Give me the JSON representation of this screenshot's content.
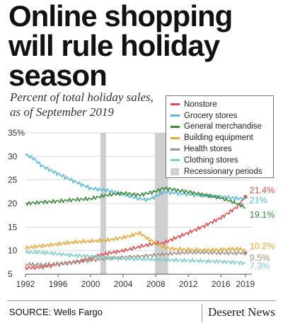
{
  "header": {
    "title": "Online shopping will rule holiday season",
    "subtitle": "Percent of total holiday sales, as of September 2019"
  },
  "footer": {
    "source": "SOURCE: Wells Fargo",
    "brand": "Deseret News"
  },
  "colors": {
    "nonstore": "#d8504f",
    "grocery": "#5bb8d8",
    "general": "#3e8a3e",
    "building": "#e3a93a",
    "health": "#a39384",
    "clothing": "#7fcdc6",
    "recession": "#cfcfcf"
  },
  "chart_data": {
    "type": "line",
    "title": "Online shopping will rule holiday season",
    "subtitle": "Percent of total holiday sales, as of September 2019",
    "xlabel": "",
    "ylabel": "",
    "xlim": [
      1992,
      2019.8
    ],
    "ylim": [
      5,
      35
    ],
    "x_ticks": [
      1992,
      1996,
      2000,
      2004,
      2008,
      2012,
      2016,
      2019
    ],
    "x_tick_labels": [
      "1992",
      "1996",
      "2000",
      "2004",
      "2008",
      "2012",
      "2016",
      "2019"
    ],
    "y_ticks": [
      5,
      10,
      15,
      20,
      25,
      30,
      35
    ],
    "y_tick_labels": [
      "5",
      "10",
      "15",
      "20",
      "25",
      "30",
      "35%"
    ],
    "grid": "horizontal",
    "legend_position": "top-right",
    "recession_label": "Recessionary periods",
    "recessions": [
      [
        2001.2,
        2001.9
      ],
      [
        2007.9,
        2009.5
      ]
    ],
    "series": [
      {
        "name": "Nonstore",
        "color": "#d8504f",
        "end_label": "21.4%",
        "x": [
          1992,
          1994,
          1996,
          1998,
          2000,
          2001,
          2002,
          2004,
          2006,
          2008,
          2009,
          2010,
          2012,
          2014,
          2016,
          2018,
          2019
        ],
        "y": [
          6.3,
          6.5,
          7.1,
          7.6,
          8.4,
          9.0,
          9.4,
          10.0,
          10.8,
          11.6,
          11.6,
          12.4,
          13.8,
          15.3,
          17.0,
          19.3,
          21.4
        ]
      },
      {
        "name": "Grocery stores",
        "color": "#5bb8d8",
        "end_label": "21%",
        "x": [
          1992,
          1993,
          1994,
          1996,
          1998,
          2000,
          2001,
          2002,
          2004,
          2006,
          2007,
          2008,
          2009,
          2010,
          2012,
          2014,
          2016,
          2018,
          2019
        ],
        "y": [
          30.4,
          29.6,
          28.0,
          26.3,
          24.7,
          23.2,
          23.0,
          22.8,
          21.9,
          21.0,
          20.8,
          21.5,
          22.5,
          22.3,
          22.0,
          21.7,
          21.4,
          21.1,
          21.0
        ]
      },
      {
        "name": "General merchandise",
        "color": "#3e8a3e",
        "end_label": "19.1%",
        "x": [
          1992,
          1994,
          1996,
          1998,
          2000,
          2002,
          2004,
          2006,
          2008,
          2009,
          2010,
          2012,
          2014,
          2016,
          2018,
          2019
        ],
        "y": [
          20.0,
          20.3,
          20.5,
          20.8,
          21.0,
          21.8,
          22.2,
          21.8,
          22.6,
          23.3,
          23.0,
          22.5,
          21.8,
          21.2,
          20.0,
          19.1
        ]
      },
      {
        "name": "Building equipment",
        "color": "#e3a93a",
        "end_label": "10.2%",
        "x": [
          1992,
          1994,
          1996,
          1998,
          2000,
          2002,
          2004,
          2005,
          2006,
          2007,
          2008,
          2009,
          2010,
          2012,
          2014,
          2016,
          2018,
          2019
        ],
        "y": [
          10.6,
          11.0,
          11.4,
          11.8,
          12.0,
          12.2,
          12.8,
          13.2,
          13.8,
          12.6,
          11.6,
          10.8,
          10.4,
          10.2,
          10.1,
          10.2,
          10.4,
          10.2
        ]
      },
      {
        "name": "Health stores",
        "color": "#a39384",
        "end_label": "9.5%",
        "x": [
          1992,
          1994,
          1996,
          1998,
          2000,
          2002,
          2004,
          2006,
          2008,
          2010,
          2012,
          2014,
          2016,
          2018,
          2019
        ],
        "y": [
          7.1,
          7.0,
          7.2,
          7.5,
          7.9,
          8.4,
          8.6,
          8.8,
          9.1,
          9.4,
          9.6,
          9.6,
          9.5,
          9.5,
          9.5
        ]
      },
      {
        "name": "Clothing stores",
        "color": "#7fcdc6",
        "end_label": "7.3%",
        "x": [
          1992,
          1994,
          1996,
          1998,
          2000,
          2002,
          2004,
          2006,
          2008,
          2010,
          2012,
          2014,
          2016,
          2018,
          2019
        ],
        "y": [
          9.7,
          9.6,
          9.3,
          9.0,
          8.8,
          8.5,
          8.3,
          8.2,
          8.1,
          8.0,
          7.9,
          7.8,
          7.7,
          7.5,
          7.3
        ]
      }
    ]
  }
}
